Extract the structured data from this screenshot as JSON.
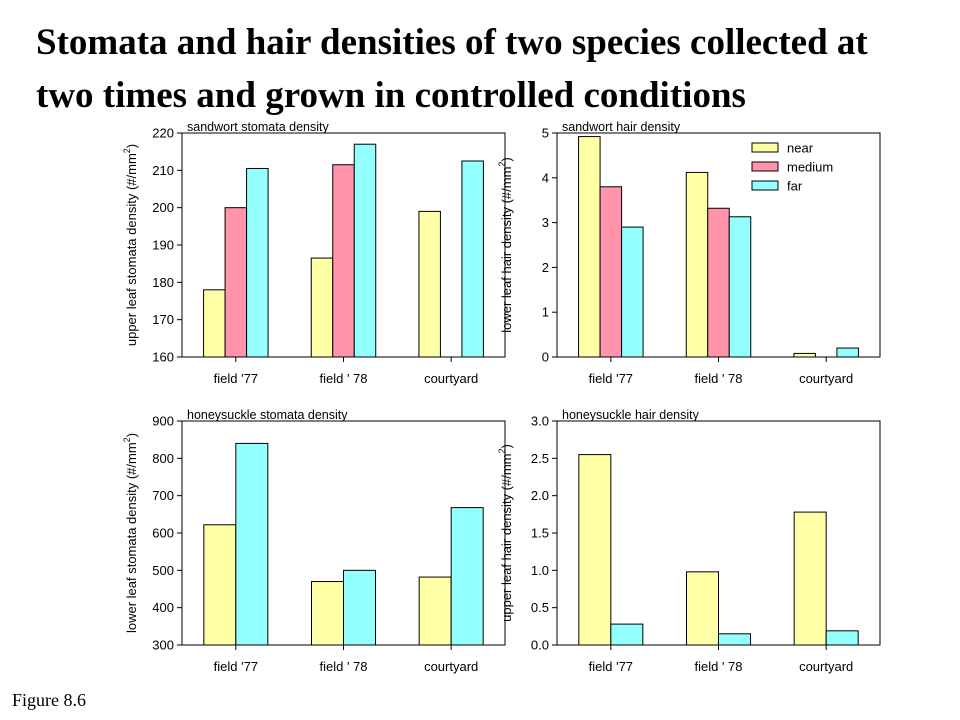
{
  "title_lines": [
    "Stomata and hair densities of two species collected at",
    "two times and grown in controlled conditions"
  ],
  "figure_label": "Figure 8.6",
  "colors": {
    "near": "#ffffa6",
    "medium": "#ff94aa",
    "far": "#94ffff"
  },
  "chart_data": [
    {
      "type": "bar",
      "title": "sandwort stomata density",
      "ylabel_main": "upper leaf stomata density (#/mm",
      "ylabel_sup": "2",
      "ylabel_end": ")",
      "categories": [
        "field '77",
        "field ' 78",
        "courtyard"
      ],
      "ylim": [
        160,
        220
      ],
      "yticks": [
        "160",
        "170",
        "180",
        "190",
        "200",
        "210",
        "220"
      ],
      "series": [
        {
          "name": "near",
          "values": [
            178,
            186.5,
            199
          ]
        },
        {
          "name": "medium",
          "values": [
            200,
            211.5,
            null
          ]
        },
        {
          "name": "far",
          "values": [
            210.5,
            217,
            212.5
          ]
        }
      ]
    },
    {
      "type": "bar",
      "title": "sandwort hair density",
      "ylabel_main": "lower leaf hair density (#/mm",
      "ylabel_sup": "2",
      "ylabel_end": ")",
      "categories": [
        "field '77",
        "field ' 78",
        "courtyard"
      ],
      "ylim": [
        0,
        5
      ],
      "yticks": [
        "0",
        "1",
        "2",
        "3",
        "4",
        "5"
      ],
      "legend": {
        "placement": "top-right",
        "entries": [
          "near",
          "medium",
          "far"
        ]
      },
      "series": [
        {
          "name": "near",
          "values": [
            4.92,
            4.12,
            0.08
          ]
        },
        {
          "name": "medium",
          "values": [
            3.8,
            3.32,
            null
          ]
        },
        {
          "name": "far",
          "values": [
            2.9,
            3.13,
            0.2
          ]
        }
      ]
    },
    {
      "type": "bar",
      "title": "honeysuckle stomata density",
      "ylabel_main": "lower leaf stomata density (#/mm",
      "ylabel_sup": "2",
      "ylabel_end": ")",
      "categories": [
        "field '77",
        "field ' 78",
        "courtyard"
      ],
      "ylim": [
        300,
        900
      ],
      "yticks": [
        "300",
        "400",
        "500",
        "600",
        "700",
        "800",
        "900"
      ],
      "series": [
        {
          "name": "near",
          "values": [
            622,
            470,
            482
          ]
        },
        {
          "name": "far",
          "values": [
            840,
            500,
            668
          ]
        }
      ]
    },
    {
      "type": "bar",
      "title": "honeysuckle hair density",
      "ylabel_main": "upper leaf hair density (#/mm",
      "ylabel_sup": "2",
      "ylabel_end": ")",
      "categories": [
        "field '77",
        "field ' 78",
        "courtyard"
      ],
      "ylim": [
        0,
        3
      ],
      "yticks": [
        "0.0",
        "0.5",
        "1.0",
        "1.5",
        "2.0",
        "2.5",
        "3.0"
      ],
      "series": [
        {
          "name": "near",
          "values": [
            2.55,
            0.98,
            1.78
          ]
        },
        {
          "name": "far",
          "values": [
            0.28,
            0.15,
            0.19
          ]
        }
      ]
    }
  ]
}
